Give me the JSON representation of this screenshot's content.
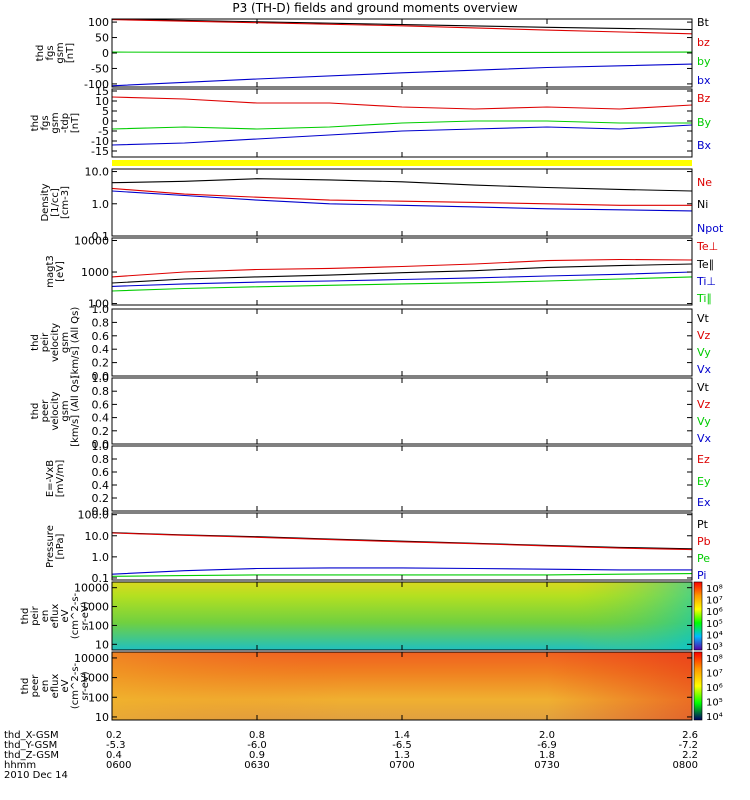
{
  "title": "P3 (TH-D) fields and ground moments overview",
  "footer": {
    "orbit_labels": [
      "thd_X-GSM",
      "thd_Y-GSM",
      "thd_Z-GSM",
      "hhmm"
    ],
    "date": "2010 Dec 14",
    "ticks": [
      {
        "x": "0.2",
        "y": "-5.3",
        "z": "0.4",
        "t": "0600"
      },
      {
        "x": "0.8",
        "y": "-6.0",
        "z": "0.9",
        "t": "0630"
      },
      {
        "x": "1.4",
        "y": "-6.5",
        "z": "1.3",
        "t": "0700"
      },
      {
        "x": "2.0",
        "y": "-6.9",
        "z": "1.8",
        "t": "0730"
      },
      {
        "x": "2.6",
        "y": "-7.2",
        "z": "2.2",
        "t": "0800"
      }
    ]
  },
  "chart_data": [
    {
      "type": "line",
      "id": "fgs_gsm",
      "ylabel": [
        "thd",
        "fgs",
        "gsm",
        "[nT]"
      ],
      "ylim": [
        -110,
        110
      ],
      "yticks": [
        "100",
        "50",
        "0",
        "-50",
        "-100"
      ],
      "ytick_values": [
        100,
        50,
        0,
        -50,
        -100
      ],
      "x": [
        0,
        30,
        60,
        90,
        120
      ],
      "series": [
        {
          "name": "Bt",
          "color": "#000000",
          "values": [
            110,
            101,
            92,
            83,
            76
          ]
        },
        {
          "name": "bz",
          "color": "#dd0000",
          "values": [
            108,
            98,
            88,
            74,
            62
          ]
        },
        {
          "name": "by",
          "color": "#00cc00",
          "values": [
            3,
            2,
            2,
            2,
            3
          ]
        },
        {
          "name": "bx",
          "color": "#0000cc",
          "values": [
            -106,
            -84,
            -64,
            -47,
            -36
          ]
        }
      ]
    },
    {
      "type": "line",
      "id": "fgs_gsm_detrended",
      "ylabel": [
        "thd",
        "fgs",
        "gsm",
        "-tdp",
        "[nT]"
      ],
      "ylim": [
        -18,
        16
      ],
      "yticks": [
        "15",
        "10",
        "5",
        "0",
        "-5",
        "-10",
        "-15"
      ],
      "ytick_values": [
        15,
        10,
        5,
        0,
        -5,
        -10,
        -15
      ],
      "x": [
        0,
        15,
        30,
        45,
        60,
        75,
        90,
        105,
        120
      ],
      "series": [
        {
          "name": "Bz",
          "color": "#dd0000",
          "values": [
            12,
            11,
            9,
            9,
            7,
            6,
            7,
            6,
            8
          ]
        },
        {
          "name": "By",
          "color": "#00cc00",
          "values": [
            -4,
            -3,
            -4,
            -3,
            -1,
            0,
            0,
            -1,
            -1
          ]
        },
        {
          "name": "Bx",
          "color": "#0000cc",
          "values": [
            -12,
            -11,
            -9,
            -7,
            -5,
            -4,
            -3,
            -4,
            -2
          ]
        }
      ]
    },
    {
      "type": "line",
      "id": "density",
      "ylabel": [
        "Density",
        "[1/cc]",
        "[cm-3]"
      ],
      "ylog": true,
      "ylim": [
        0.1,
        12
      ],
      "yticks": [
        "10.0",
        "1.0",
        "0.1"
      ],
      "ytick_values": [
        10,
        1,
        0.1
      ],
      "x": [
        0,
        15,
        30,
        45,
        60,
        75,
        90,
        105,
        120
      ],
      "series": [
        {
          "name": "Ne",
          "color": "#dd0000",
          "values": [
            3.0,
            2.0,
            1.6,
            1.3,
            1.2,
            1.1,
            1.0,
            0.9,
            0.9
          ]
        },
        {
          "name": "Ni",
          "color": "#000000",
          "values": [
            4.5,
            5.0,
            6.0,
            5.5,
            4.8,
            3.8,
            3.2,
            2.8,
            2.5
          ]
        },
        {
          "name": "Npot",
          "color": "#0000cc",
          "values": [
            2.5,
            1.8,
            1.3,
            1.0,
            0.9,
            0.8,
            0.7,
            0.65,
            0.6
          ]
        }
      ]
    },
    {
      "type": "line",
      "id": "temperature",
      "ylabel": [
        "magt3",
        "[eV]"
      ],
      "ylog": true,
      "ylim": [
        90,
        12000
      ],
      "yticks": [
        "10000",
        "1000",
        "100"
      ],
      "ytick_values": [
        10000,
        1000,
        100
      ],
      "x": [
        0,
        15,
        30,
        45,
        60,
        75,
        90,
        105,
        120
      ],
      "series": [
        {
          "name": "Te⊥",
          "color": "#dd0000",
          "values": [
            700,
            1000,
            1200,
            1300,
            1500,
            1800,
            2300,
            2500,
            2400
          ]
        },
        {
          "name": "Te∥",
          "color": "#000000",
          "values": [
            450,
            600,
            700,
            800,
            950,
            1100,
            1400,
            1600,
            1800
          ]
        },
        {
          "name": "Ti⊥",
          "color": "#0000cc",
          "values": [
            350,
            420,
            480,
            520,
            580,
            650,
            750,
            850,
            1000
          ]
        },
        {
          "name": "Ti∥",
          "color": "#00cc00",
          "values": [
            250,
            300,
            340,
            380,
            420,
            460,
            520,
            600,
            700
          ]
        }
      ]
    },
    {
      "type": "line",
      "id": "peir_velocity",
      "ylabel": [
        "thd",
        "peir",
        "velocity",
        "gsm",
        "[km/s] (All Qs)"
      ],
      "ylim": [
        0,
        1
      ],
      "yticks": [
        "1.0",
        "0.8",
        "0.6",
        "0.4",
        "0.2",
        "0.0"
      ],
      "ytick_values": [
        1.0,
        0.8,
        0.6,
        0.4,
        0.2,
        0.0
      ],
      "series": [
        {
          "name": "Vt",
          "color": "#000000"
        },
        {
          "name": "Vz",
          "color": "#dd0000"
        },
        {
          "name": "Vy",
          "color": "#00cc00"
        },
        {
          "name": "Vx",
          "color": "#0000cc"
        }
      ]
    },
    {
      "type": "line",
      "id": "peer_velocity",
      "ylabel": [
        "thd",
        "peer",
        "velocity",
        "gsm",
        "[km/s] (All Qs)"
      ],
      "ylim": [
        0,
        1
      ],
      "yticks": [
        "1.0",
        "0.8",
        "0.6",
        "0.4",
        "0.2",
        "0.0"
      ],
      "ytick_values": [
        1.0,
        0.8,
        0.6,
        0.4,
        0.2,
        0.0
      ],
      "series": [
        {
          "name": "Vt",
          "color": "#000000"
        },
        {
          "name": "Vz",
          "color": "#dd0000"
        },
        {
          "name": "Vy",
          "color": "#00cc00"
        },
        {
          "name": "Vx",
          "color": "#0000cc"
        }
      ]
    },
    {
      "type": "line",
      "id": "efield",
      "ylabel": [
        "E=-VxB",
        "[mV/m]"
      ],
      "ylim": [
        0,
        1
      ],
      "yticks": [
        "1.0",
        "0.8",
        "0.6",
        "0.4",
        "0.2",
        "0.0"
      ],
      "ytick_values": [
        1.0,
        0.8,
        0.6,
        0.4,
        0.2,
        0.0
      ],
      "series": [
        {
          "name": "Ez",
          "color": "#dd0000"
        },
        {
          "name": "Ey",
          "color": "#00cc00"
        },
        {
          "name": "Ex",
          "color": "#0000cc"
        }
      ]
    },
    {
      "type": "line",
      "id": "pressure",
      "ylabel": [
        "Pressure",
        "[nPa]"
      ],
      "ylog": true,
      "ylim": [
        0.08,
        120
      ],
      "yticks": [
        "100.0",
        "10.0",
        "1.0",
        "0.1"
      ],
      "ytick_values": [
        100,
        10,
        1,
        0.1
      ],
      "x": [
        0,
        15,
        30,
        45,
        60,
        75,
        90,
        105,
        120
      ],
      "series": [
        {
          "name": "Pt",
          "color": "#000000",
          "values": [
            14,
            11,
            9,
            7,
            5.5,
            4.4,
            3.5,
            2.8,
            2.4
          ]
        },
        {
          "name": "Pb",
          "color": "#dd0000",
          "values": [
            13.5,
            10.5,
            8.5,
            6.6,
            5.2,
            4.2,
            3.3,
            2.6,
            2.2
          ]
        },
        {
          "name": "Pe",
          "color": "#00cc00",
          "values": [
            0.12,
            0.13,
            0.14,
            0.14,
            0.14,
            0.14,
            0.14,
            0.15,
            0.16
          ]
        },
        {
          "name": "Pi",
          "color": "#0000cc",
          "values": [
            0.15,
            0.22,
            0.28,
            0.3,
            0.3,
            0.28,
            0.26,
            0.24,
            0.24
          ]
        }
      ]
    },
    {
      "type": "heatmap",
      "id": "peir_en_eflux",
      "ylabel": [
        "thd",
        "peir",
        "en",
        "eflux",
        "eV",
        "(cm^2-s-",
        "sr-eV)"
      ],
      "ylog": true,
      "ylim": [
        5,
        20000
      ],
      "yticks": [
        "10000",
        "1000",
        "100",
        "10"
      ],
      "ytick_values": [
        10000,
        1000,
        100,
        10
      ],
      "colorbar": {
        "labels": [
          "10⁸",
          "10⁷",
          "10⁶",
          "10⁵",
          "10⁴",
          "10³"
        ]
      }
    },
    {
      "type": "heatmap",
      "id": "peer_en_eflux",
      "ylabel": [
        "thd",
        "peer",
        "en",
        "eflux",
        "eV",
        "(cm^2-s-",
        "sr-eV)"
      ],
      "ylog": true,
      "ylim": [
        7,
        20000
      ],
      "yticks": [
        "10000",
        "1000",
        "100",
        "10"
      ],
      "ytick_values": [
        10000,
        1000,
        100,
        10
      ],
      "colorbar": {
        "labels": [
          "10⁸",
          "10⁷",
          "10⁶",
          "10⁵",
          "10⁴"
        ]
      }
    }
  ]
}
